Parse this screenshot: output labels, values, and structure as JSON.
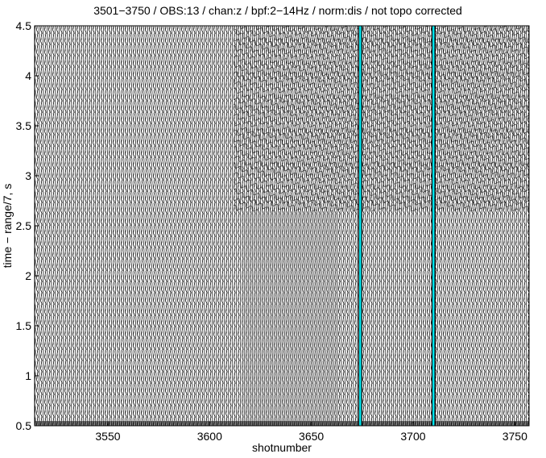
{
  "chart_data": {
    "type": "record-section",
    "title": "3501−3750 / OBS:13 / chan:z / bpf:2−14Hz / norm:dis / not topo corrected",
    "x_label": "shotnumber",
    "y_label": "time − range/7, s",
    "xlim": [
      3514,
      3757
    ],
    "xticks": [
      3550,
      3600,
      3650,
      3700,
      3750
    ],
    "ylim": [
      0.5,
      4.5
    ],
    "yticks": [
      0.5,
      1,
      1.5,
      2,
      2.5,
      3,
      3.5,
      4,
      4.5
    ],
    "highlight_color": "#00e5ee",
    "highlight_x": [
      3674,
      3710
    ]
  }
}
